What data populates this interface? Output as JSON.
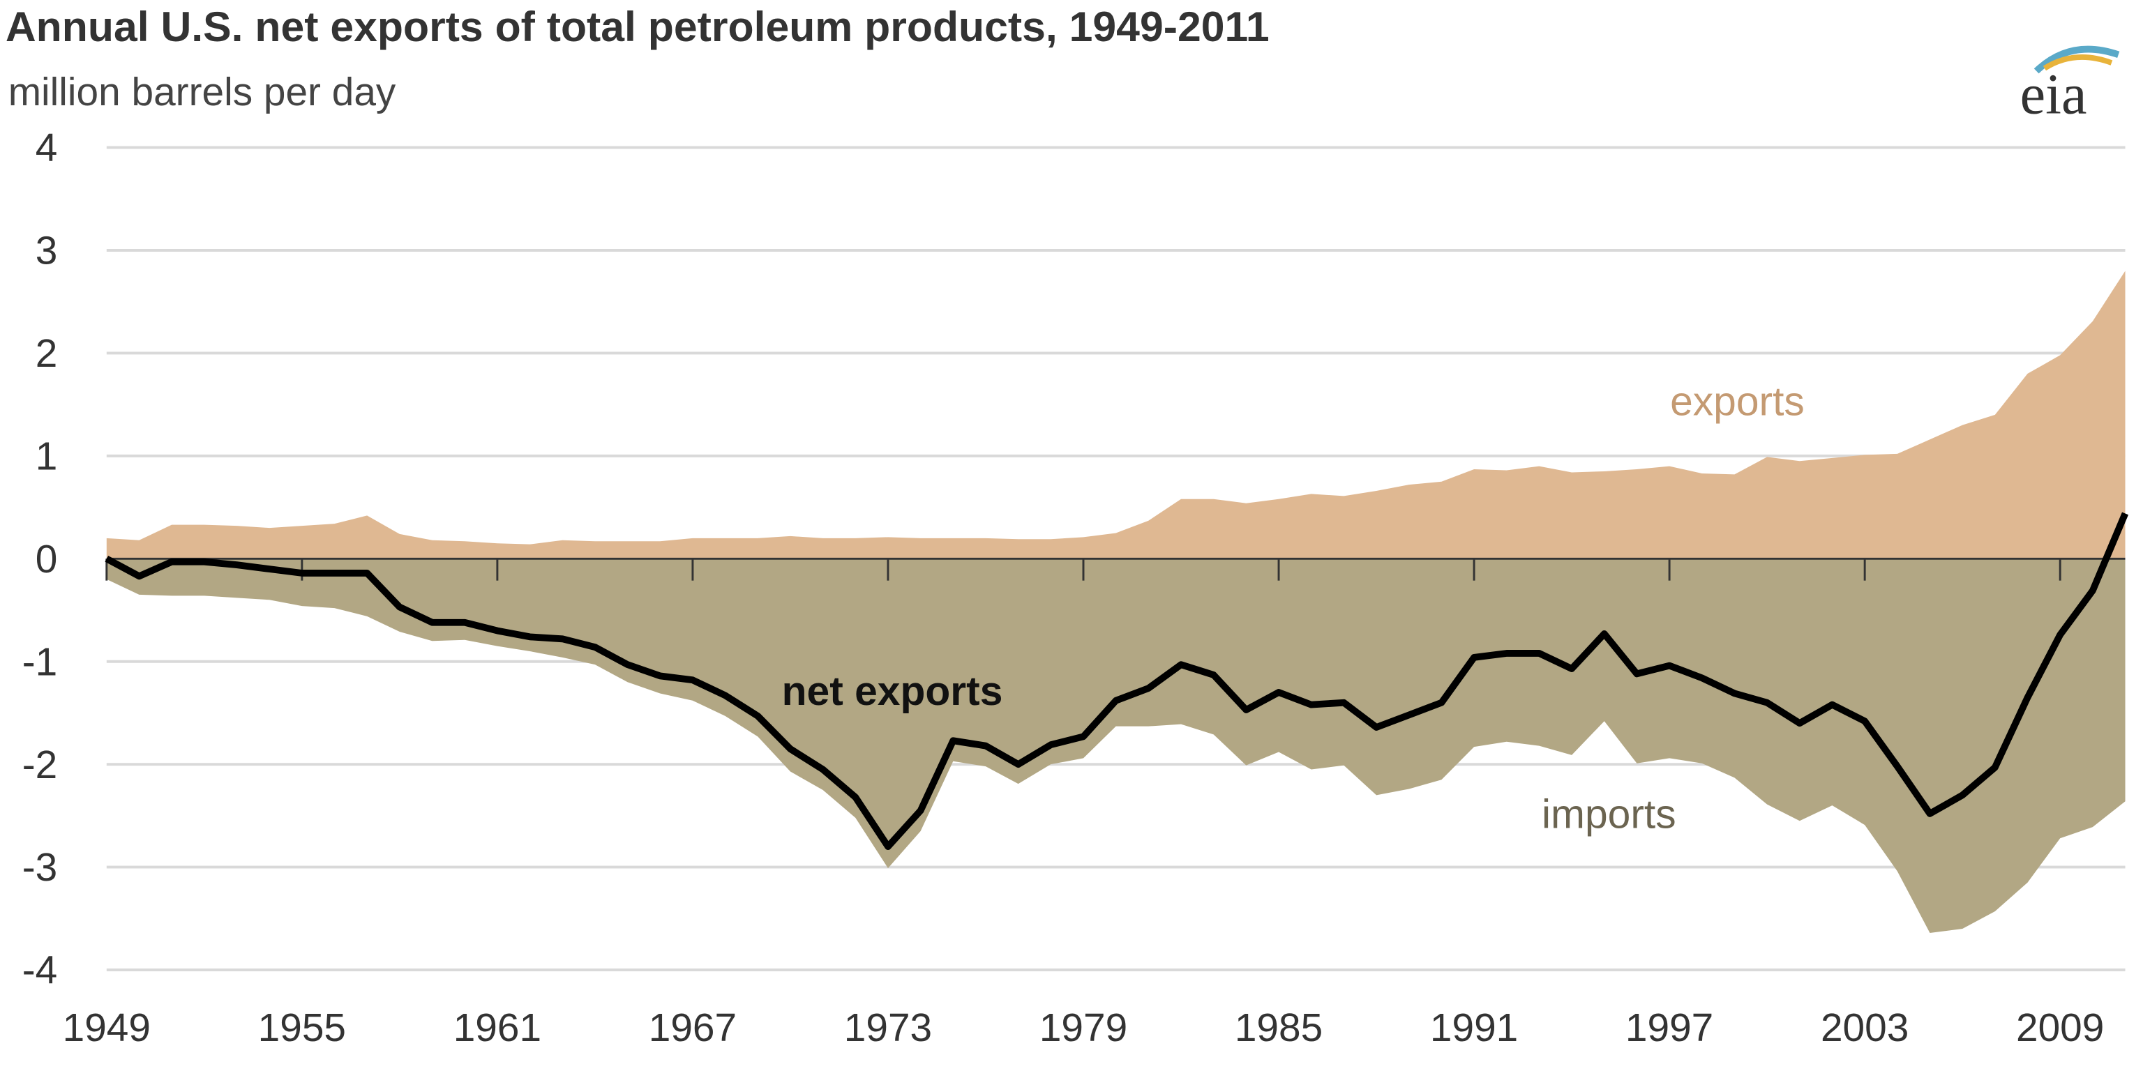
{
  "chart_data": {
    "type": "area",
    "title": "Annual U.S. net exports of total petroleum products, 1949-2011",
    "subtitle": "million barrels per day",
    "logo": "eia",
    "ylim": [
      -4,
      4
    ],
    "yticks": [
      "4",
      "3",
      "2",
      "1",
      "0",
      "-1",
      "-2",
      "-3",
      "-4"
    ],
    "xlim": [
      1949,
      2011
    ],
    "xticks": [
      "1949",
      "1955",
      "1961",
      "1967",
      "1973",
      "1979",
      "1985",
      "1991",
      "1997",
      "2003",
      "2009"
    ],
    "grid": true,
    "x": [
      1949,
      1950,
      1951,
      1952,
      1953,
      1954,
      1955,
      1956,
      1957,
      1958,
      1959,
      1960,
      1961,
      1962,
      1963,
      1964,
      1965,
      1966,
      1967,
      1968,
      1969,
      1970,
      1971,
      1972,
      1973,
      1974,
      1975,
      1976,
      1977,
      1978,
      1979,
      1980,
      1981,
      1982,
      1983,
      1984,
      1985,
      1986,
      1987,
      1988,
      1989,
      1990,
      1991,
      1992,
      1993,
      1994,
      1995,
      1996,
      1997,
      1998,
      1999,
      2000,
      2001,
      2002,
      2003,
      2004,
      2005,
      2006,
      2007,
      2008,
      2009,
      2010,
      2011
    ],
    "series": [
      {
        "name": "exports",
        "color": "#dfb892",
        "kind": "area",
        "values": [
          0.2,
          0.18,
          0.33,
          0.33,
          0.32,
          0.3,
          0.32,
          0.34,
          0.42,
          0.24,
          0.18,
          0.17,
          0.15,
          0.14,
          0.18,
          0.17,
          0.17,
          0.17,
          0.2,
          0.2,
          0.2,
          0.22,
          0.2,
          0.2,
          0.21,
          0.2,
          0.2,
          0.2,
          0.19,
          0.19,
          0.21,
          0.25,
          0.37,
          0.58,
          0.58,
          0.54,
          0.58,
          0.63,
          0.61,
          0.66,
          0.72,
          0.75,
          0.87,
          0.86,
          0.9,
          0.84,
          0.85,
          0.87,
          0.9,
          0.83,
          0.82,
          0.99,
          0.95,
          0.98,
          1.01,
          1.02,
          1.16,
          1.3,
          1.4,
          1.8,
          1.98,
          2.31,
          2.8
        ]
      },
      {
        "name": "imports",
        "color": "#b2a784",
        "kind": "area-negative",
        "values": [
          0.2,
          0.35,
          0.36,
          0.36,
          0.38,
          0.4,
          0.46,
          0.48,
          0.56,
          0.71,
          0.8,
          0.79,
          0.85,
          0.9,
          0.96,
          1.03,
          1.2,
          1.31,
          1.38,
          1.53,
          1.73,
          2.07,
          2.25,
          2.52,
          3.01,
          2.65,
          1.97,
          2.02,
          2.19,
          2.0,
          1.94,
          1.63,
          1.63,
          1.61,
          1.71,
          2.01,
          1.88,
          2.05,
          2.01,
          2.3,
          2.24,
          2.15,
          1.83,
          1.78,
          1.82,
          1.91,
          1.58,
          1.99,
          1.94,
          1.99,
          2.13,
          2.39,
          2.55,
          2.4,
          2.59,
          3.04,
          3.64,
          3.6,
          3.43,
          3.15,
          2.72,
          2.61,
          2.36
        ]
      },
      {
        "name": "net exports",
        "color": "#000000",
        "kind": "line",
        "values": [
          0.0,
          -0.17,
          -0.03,
          -0.03,
          -0.06,
          -0.1,
          -0.14,
          -0.14,
          -0.14,
          -0.47,
          -0.62,
          -0.62,
          -0.7,
          -0.76,
          -0.78,
          -0.86,
          -1.03,
          -1.14,
          -1.18,
          -1.33,
          -1.53,
          -1.85,
          -2.05,
          -2.32,
          -2.8,
          -2.45,
          -1.77,
          -1.82,
          -2.0,
          -1.81,
          -1.73,
          -1.38,
          -1.26,
          -1.03,
          -1.13,
          -1.47,
          -1.3,
          -1.42,
          -1.4,
          -1.64,
          -1.52,
          -1.4,
          -0.96,
          -0.92,
          -0.92,
          -1.07,
          -0.73,
          -1.12,
          -1.04,
          -1.16,
          -1.31,
          -1.4,
          -1.6,
          -1.42,
          -1.58,
          -2.02,
          -2.48,
          -2.3,
          -2.03,
          -1.35,
          -0.74,
          -0.31,
          0.44
        ]
      }
    ],
    "annotations": [
      "exports",
      "net exports",
      "imports"
    ]
  }
}
